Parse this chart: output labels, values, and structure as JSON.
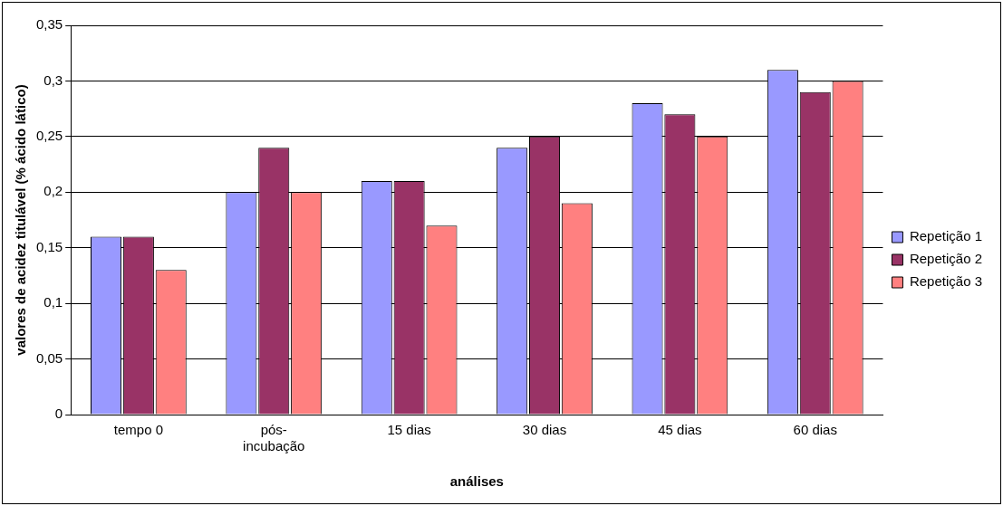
{
  "chart_data": {
    "type": "bar",
    "xlabel": "análises",
    "ylabel": "valores de acidez titulável (% ácido lático)",
    "categories": [
      "tempo 0",
      "pós-incubação",
      "15 dias",
      "30 dias",
      "45 dias",
      "60 dias"
    ],
    "series": [
      {
        "name": "Repetição 1",
        "color": "#9999ff",
        "values": [
          0.16,
          0.2,
          0.21,
          0.24,
          0.28,
          0.31
        ]
      },
      {
        "name": "Repetição 2",
        "color": "#993366",
        "values": [
          0.16,
          0.24,
          0.21,
          0.25,
          0.27,
          0.29
        ]
      },
      {
        "name": "Repetição 3",
        "color": "#ff8080",
        "values": [
          0.13,
          0.2,
          0.17,
          0.19,
          0.25,
          0.3
        ]
      }
    ],
    "ylim": [
      0,
      0.35
    ],
    "yticks": [
      {
        "value": 0,
        "label": "0"
      },
      {
        "value": 0.05,
        "label": "0,05"
      },
      {
        "value": 0.1,
        "label": "0,1"
      },
      {
        "value": 0.15,
        "label": "0,15"
      },
      {
        "value": 0.2,
        "label": "0,2"
      },
      {
        "value": 0.25,
        "label": "0,25"
      },
      {
        "value": 0.3,
        "label": "0,3"
      },
      {
        "value": 0.35,
        "label": "0,35"
      }
    ],
    "grid": "y",
    "legend": "right"
  }
}
